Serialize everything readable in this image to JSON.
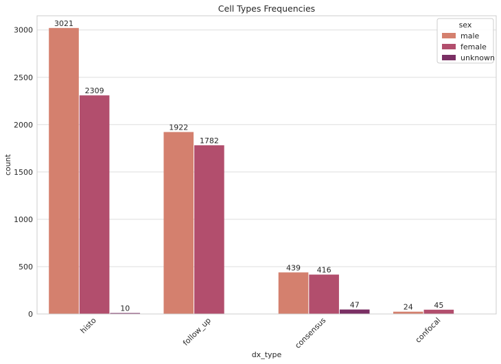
{
  "chart_data": {
    "type": "bar",
    "title": "Cell Types Frequencies",
    "xlabel": "dx_type",
    "ylabel": "count",
    "categories": [
      "histo",
      "follow_up",
      "consensus",
      "confocal"
    ],
    "series": [
      {
        "name": "male",
        "values": [
          3021,
          1922,
          439,
          24
        ],
        "color": "#d4806e"
      },
      {
        "name": "female",
        "values": [
          2309,
          1782,
          416,
          45
        ],
        "color": "#b24e6d"
      },
      {
        "name": "unknown",
        "values": [
          10,
          null,
          47,
          null
        ],
        "color": "#7a2f64"
      }
    ],
    "ylim": [
      0,
      3150
    ],
    "yticks": [
      0,
      500,
      1000,
      1500,
      2000,
      2500,
      3000
    ],
    "grid": true,
    "legend": {
      "title": "sex",
      "position": "top-right"
    },
    "xtick_rotation": 45
  }
}
